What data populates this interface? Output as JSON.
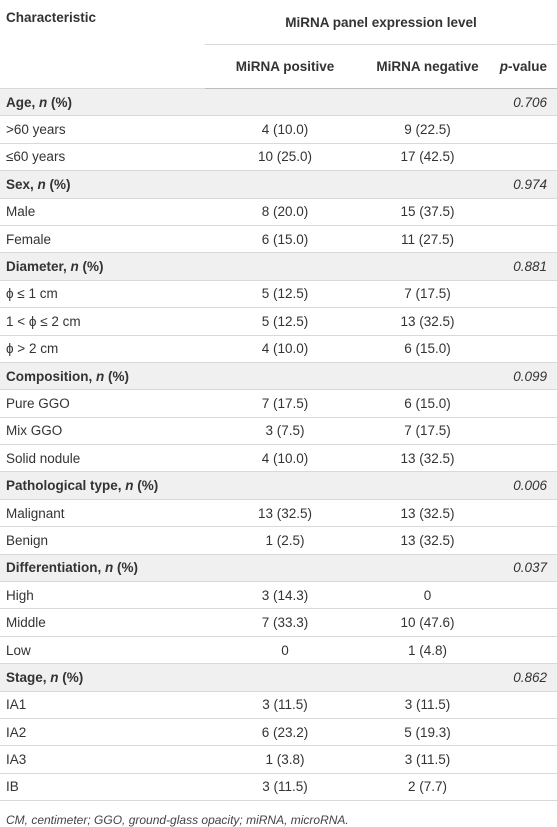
{
  "table": {
    "header": {
      "characteristic": "Characteristic",
      "group": "MiRNA panel expression level",
      "positive": "MiRNA positive",
      "negative": "MiRNA negative",
      "pvalue": [
        "p",
        "-value"
      ]
    },
    "sections": [
      {
        "title": [
          "Age, ",
          "n",
          " (%)"
        ],
        "p": "0.706",
        "rows": [
          [
            ">60 years",
            "4 (10.0)",
            "9 (22.5)"
          ],
          [
            "≤60 years",
            "10 (25.0)",
            "17 (42.5)"
          ]
        ]
      },
      {
        "title": [
          "Sex, ",
          "n",
          " (%)"
        ],
        "p": "0.974",
        "rows": [
          [
            "Male",
            "8 (20.0)",
            "15 (37.5)"
          ],
          [
            "Female",
            "6 (15.0)",
            "11 (27.5)"
          ]
        ]
      },
      {
        "title": [
          "Diameter, ",
          "n",
          " (%)"
        ],
        "p": "0.881",
        "rows": [
          [
            "ϕ ≤ 1 cm",
            "5 (12.5)",
            "7 (17.5)"
          ],
          [
            "1 < ϕ ≤ 2 cm",
            "5 (12.5)",
            "13 (32.5)"
          ],
          [
            "ϕ > 2 cm",
            "4 (10.0)",
            "6 (15.0)"
          ]
        ]
      },
      {
        "title": [
          "Composition, ",
          "n",
          " (%)"
        ],
        "p": "0.099",
        "rows": [
          [
            "Pure GGO",
            "7 (17.5)",
            "6 (15.0)"
          ],
          [
            "Mix GGO",
            "3 (7.5)",
            "7 (17.5)"
          ],
          [
            "Solid nodule",
            "4 (10.0)",
            "13 (32.5)"
          ]
        ]
      },
      {
        "title": [
          "Pathological type, ",
          "n",
          " (%)"
        ],
        "p": "0.006",
        "rows": [
          [
            "Malignant",
            "13 (32.5)",
            "13 (32.5)"
          ],
          [
            "Benign",
            "1 (2.5)",
            "13 (32.5)"
          ]
        ]
      },
      {
        "title": [
          "Differentiation, ",
          "n",
          " (%)"
        ],
        "p": "0.037",
        "rows": [
          [
            "High",
            "3 (14.3)",
            "0"
          ],
          [
            "Middle",
            "7 (33.3)",
            "10 (47.6)"
          ],
          [
            "Low",
            "0",
            "1 (4.8)"
          ]
        ]
      },
      {
        "title": [
          "Stage, ",
          "n",
          " (%)"
        ],
        "p": "0.862",
        "rows": [
          [
            "IA1",
            "3 (11.5)",
            "3 (11.5)"
          ],
          [
            "IA2",
            "6 (23.2)",
            "5 (19.3)"
          ],
          [
            "IA3",
            "1 (3.8)",
            "3 (11.5)"
          ],
          [
            "IB",
            "3 (11.5)",
            "2 (7.7)"
          ]
        ]
      }
    ],
    "footnote": "CM, centimeter; GGO, ground-glass opacity; miRNA, microRNA."
  }
}
